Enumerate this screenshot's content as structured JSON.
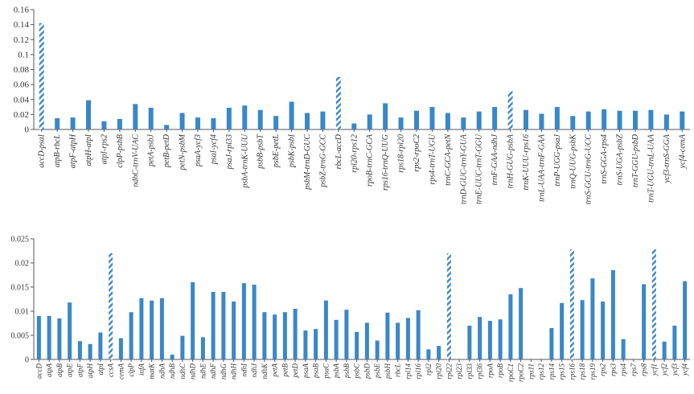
{
  "colors": {
    "bar": "#3a87c8",
    "hatch_bg": "#ffffff",
    "axis": "#555555"
  },
  "chart_data": [
    {
      "type": "bar",
      "title": "",
      "xlabel": "",
      "ylabel": "",
      "ylim": [
        0,
        0.16
      ],
      "yticks": [
        "0",
        "0.02",
        "0.04",
        "0.06",
        "0.08",
        "0.1",
        "0.12",
        "0.14",
        "0.16"
      ],
      "grid": false,
      "categories": [
        "accD-psaI",
        "atpB-rbcL",
        "atpF-atpH",
        "atpH-atpI",
        "atpI-rps2",
        "clpP-psbB",
        "ndhC-trnV-UAC",
        "petA-psbJ",
        "petB-petD",
        "petN-psbM",
        "psaA-ycf3",
        "psaI-ycf4",
        "psaJ-rpl33",
        "psbA-trnK-UUU",
        "psbB-psbT",
        "psbE-petL",
        "psbK-psbI",
        "psbM-trnD-GUC",
        "psbZ-trnG-GCC",
        "rbcL-accD",
        "rpl20-rps12",
        "rpoB-trnC-GCA",
        "rps16-trnQ-UUG",
        "rps18-rpl20",
        "rps2-rpoC2",
        "rps4-trnT-UGU",
        "trnC-GCA-petN",
        "trnD-GUC-trnY-GUA",
        "trnE-UUC-trnT-GGU",
        "trnF-GAA-ndhJ",
        "trnH-GUG-psbA",
        "trnK-UUU-rps16",
        "trnL-UAA-trnF-GAA",
        "trnP-UGG-psaJ",
        "trnQ-UUG-psbK",
        "trnS-GCU-trnG-UCC",
        "trnS-GGA-rps4",
        "trnS-UGA-psbZ",
        "trnT-GGU-psbD",
        "trnT-UGU-trnL-UAA",
        "ycf3-trnS-GGA",
        "ycf4-cemA"
      ],
      "values": [
        0.142,
        0.015,
        0.016,
        0.039,
        0.011,
        0.014,
        0.034,
        0.029,
        0.006,
        0.022,
        0.016,
        0.015,
        0.029,
        0.032,
        0.026,
        0.018,
        0.037,
        0.022,
        0.024,
        0.07,
        0.008,
        0.02,
        0.035,
        0.016,
        0.025,
        0.03,
        0.022,
        0.016,
        0.024,
        0.03,
        0.051,
        0.026,
        0.021,
        0.03,
        0.018,
        0.024,
        0.027,
        0.025,
        0.025,
        0.026,
        0.02,
        0.024
      ],
      "highlighted": [
        "accD-psaI",
        "rbcL-accD",
        "trnH-GUG-psbA"
      ]
    },
    {
      "type": "bar",
      "title": "",
      "xlabel": "",
      "ylabel": "",
      "ylim": [
        0,
        0.025
      ],
      "yticks": [
        "0",
        "0.005",
        "0.01",
        "0.015",
        "0.02",
        "0.025"
      ],
      "grid": false,
      "categories": [
        "accD",
        "atpA",
        "atpB",
        "atpE",
        "atpF",
        "atpH",
        "atpI",
        "ccsA",
        "cemA",
        "clpP",
        "infA",
        "matK",
        "ndhA",
        "ndhB",
        "ndhC",
        "ndhD",
        "ndhE",
        "ndhF",
        "ndhG",
        "ndhH",
        "ndhI",
        "ndhJ",
        "ndhK",
        "petA",
        "petB",
        "petD",
        "psaA",
        "psaB",
        "psaC",
        "psbA",
        "psbB",
        "psbC",
        "psbD",
        "psbE",
        "psbH",
        "rbcL",
        "rpl14",
        "rpl16",
        "rpl2",
        "rpl20",
        "rpl22",
        "rpl23",
        "rpl33",
        "rpl36",
        "rpoA",
        "rpoB",
        "rpoC1",
        "rpoC2",
        "rps11",
        "rps12",
        "rps14",
        "rps15",
        "rps16",
        "rps18",
        "rps19",
        "rps2",
        "rps3",
        "rps4",
        "rps7",
        "rps8",
        "ycf1",
        "ycf2",
        "ycf3",
        "ycf4"
      ],
      "values": [
        0.009,
        0.009,
        0.0085,
        0.0118,
        0.0038,
        0.0032,
        0.0056,
        0.022,
        0.0044,
        0.0098,
        0.0127,
        0.0122,
        0.0127,
        0.001,
        0.0049,
        0.016,
        0.0046,
        0.014,
        0.014,
        0.012,
        0.0158,
        0.0155,
        0.0098,
        0.0093,
        0.0098,
        0.0105,
        0.006,
        0.0063,
        0.0122,
        0.0082,
        0.0103,
        0.0057,
        0.0076,
        0.0039,
        0.0097,
        0.0076,
        0.0086,
        0.0102,
        0.0021,
        0.0028,
        0.022,
        0,
        0.007,
        0.0088,
        0.008,
        0.0083,
        0.0135,
        0.0148,
        0,
        0,
        0.0065,
        0.0117,
        0.0228,
        0.0123,
        0.0168,
        0.012,
        0.0185,
        0.0042,
        0,
        0.0156,
        0.0228,
        0.0037,
        0.007,
        0.0162
      ],
      "highlighted": [
        "ccsA",
        "rpl22",
        "rps16",
        "ycf1"
      ]
    }
  ]
}
